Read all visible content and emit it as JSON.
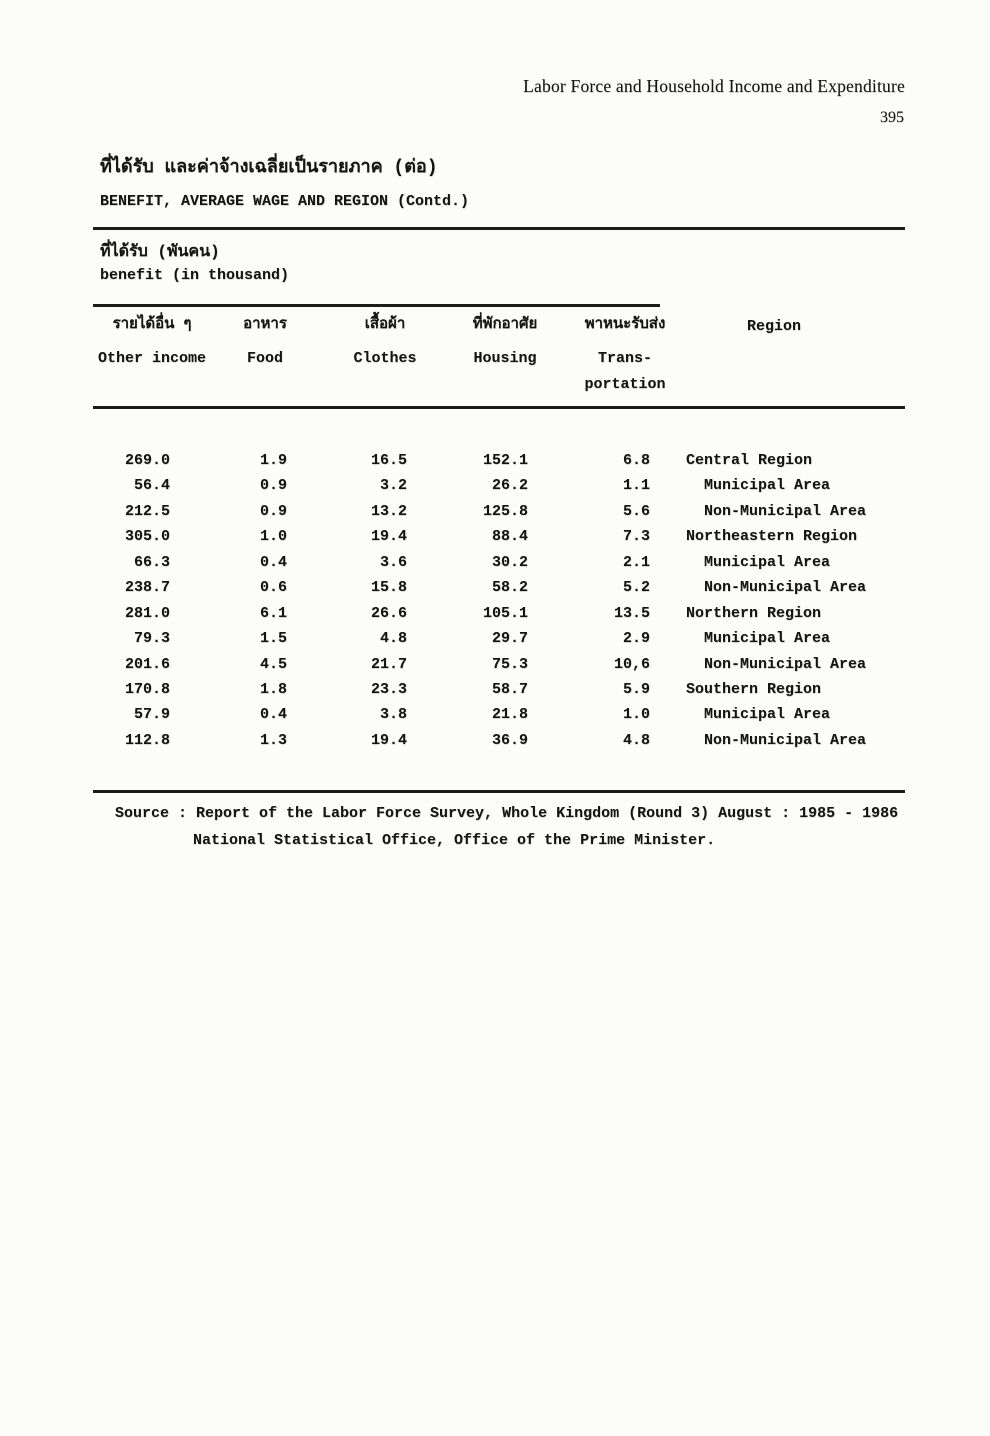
{
  "page": {
    "running_head": "Labor Force and Household Income and Expenditure",
    "page_number": "395"
  },
  "title": {
    "thai": "ที่ได้รับ และค่าจ้างเฉลี่ยเป็นรายภาค (ต่อ)",
    "english": "BENEFIT, AVERAGE WAGE AND REGION (Contd.)"
  },
  "subtitle": {
    "thai": "ที่ได้รับ (พันคน)",
    "english": "benefit (in thousand)"
  },
  "table": {
    "columns": [
      {
        "thai": "รายได้อื่น ๆ",
        "english": "Other income"
      },
      {
        "thai": "อาหาร",
        "english": "Food"
      },
      {
        "thai": "เสื้อผ้า",
        "english": "Clothes"
      },
      {
        "thai": "ที่พักอาศัย",
        "english": "Housing"
      },
      {
        "thai": "พาหนะรับส่ง",
        "english": "Trans-",
        "english2": "portation"
      },
      {
        "thai": "",
        "english": "Region"
      }
    ],
    "rows": [
      {
        "values": [
          "269.0",
          "1.9",
          "16.5",
          "152.1",
          "6.8"
        ],
        "region": "Central Region",
        "indent": false
      },
      {
        "values": [
          "56.4",
          "0.9",
          "3.2",
          "26.2",
          "1.1"
        ],
        "region": "Municipal Area",
        "indent": true
      },
      {
        "values": [
          "212.5",
          "0.9",
          "13.2",
          "125.8",
          "5.6"
        ],
        "region": "Non-Municipal Area",
        "indent": true
      },
      {
        "values": [
          "305.0",
          "1.0",
          "19.4",
          "88.4",
          "7.3"
        ],
        "region": "Northeastern Region",
        "indent": false
      },
      {
        "values": [
          "66.3",
          "0.4",
          "3.6",
          "30.2",
          "2.1"
        ],
        "region": "Municipal Area",
        "indent": true
      },
      {
        "values": [
          "238.7",
          "0.6",
          "15.8",
          "58.2",
          "5.2"
        ],
        "region": "Non-Municipal Area",
        "indent": true
      },
      {
        "values": [
          "281.0",
          "6.1",
          "26.6",
          "105.1",
          "13.5"
        ],
        "region": "Northern Region",
        "indent": false
      },
      {
        "values": [
          "79.3",
          "1.5",
          "4.8",
          "29.7",
          "2.9"
        ],
        "region": "Municipal Area",
        "indent": true
      },
      {
        "values": [
          "201.6",
          "4.5",
          "21.7",
          "75.3",
          "10,6"
        ],
        "region": "Non-Municipal Area",
        "indent": true
      },
      {
        "values": [
          "170.8",
          "1.8",
          "23.3",
          "58.7",
          "5.9"
        ],
        "region": "Southern Region",
        "indent": false
      },
      {
        "values": [
          "57.9",
          "0.4",
          "3.8",
          "21.8",
          "1.0"
        ],
        "region": "Municipal Area",
        "indent": true
      },
      {
        "values": [
          "112.8",
          "1.3",
          "19.4",
          "36.9",
          "4.8"
        ],
        "region": "Non-Municipal Area",
        "indent": true
      }
    ]
  },
  "source": {
    "line1": "Source : Report of the Labor Force Survey, Whole Kingdom (Round 3) August : 1985 - 1986",
    "line2": "National Statistical Office, Office of the Prime Minister."
  },
  "ink_color": "#141414",
  "paper_color": "#fcfcfa"
}
